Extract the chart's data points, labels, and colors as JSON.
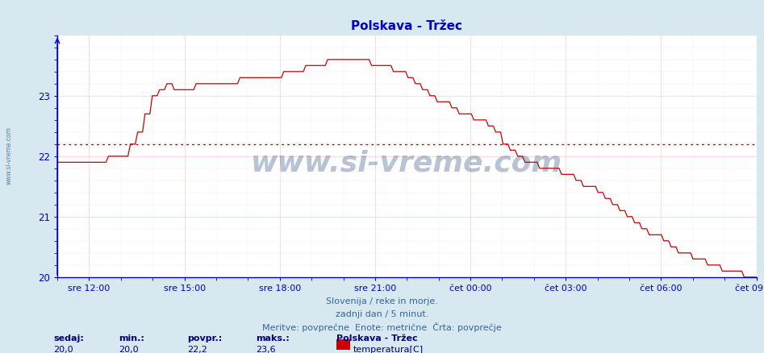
{
  "title": "Polskava - Tržec",
  "title_color": "#0000cc",
  "bg_color": "#d8e8f0",
  "plot_bg_color": "#ffffff",
  "line_color": "#cc0000",
  "avg_line_color": "#cc0000",
  "avg_line_style": "dotted",
  "avg_value": 22.2,
  "y_min": 20.0,
  "y_max": 24.0,
  "y_ticks": [
    20,
    21,
    22,
    23
  ],
  "grid_color": "#ffcccc",
  "grid_minor_color": "#ffe8e8",
  "axis_color": "#0000cc",
  "tick_label_color": "#0000cc",
  "x_tick_labels": [
    "sre 12:00",
    "sre 15:00",
    "sre 18:00",
    "sre 21:00",
    "čet 00:00",
    "čet 03:00",
    "čet 06:00",
    "čet 09:00"
  ],
  "footer_line1": "Slovenija / reke in morje.",
  "footer_line2": "zadnji dan / 5 minut.",
  "footer_line3": "Meritve: povprečne  Enote: metrične  Črta: povprečje",
  "footer_color": "#336699",
  "stats_labels": [
    "sedaj:",
    "min.:",
    "povpr.:",
    "maks.:"
  ],
  "stats_values": [
    "20,0",
    "20,0",
    "22,2",
    "23,6"
  ],
  "legend_title": "Polskava - Tržec",
  "legend_color": "#cc0000",
  "legend_label": "temperatura[C]",
  "stats_color": "#000080",
  "watermark_text": "www.si-vreme.com",
  "watermark_color": "#1a3a6e",
  "watermark_alpha": 0.3,
  "left_label": "www.si-vreme.com",
  "left_label_color": "#336699"
}
